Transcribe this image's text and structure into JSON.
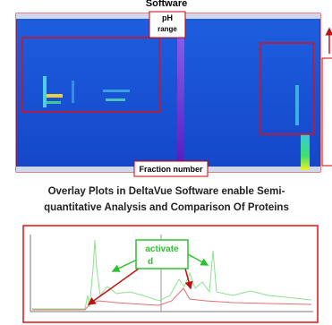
{
  "header": {
    "title": "Software"
  },
  "heatmap": {
    "y_label": [
      "pH",
      "range"
    ],
    "x_label": "Fraction number"
  },
  "caption": [
    "Overlay Plots in DeltaVue Software enable Semi-",
    "quantitative Analysis and Comparison Of Proteins"
  ],
  "overlay": {
    "annotation": [
      "activate",
      "d"
    ]
  }
}
